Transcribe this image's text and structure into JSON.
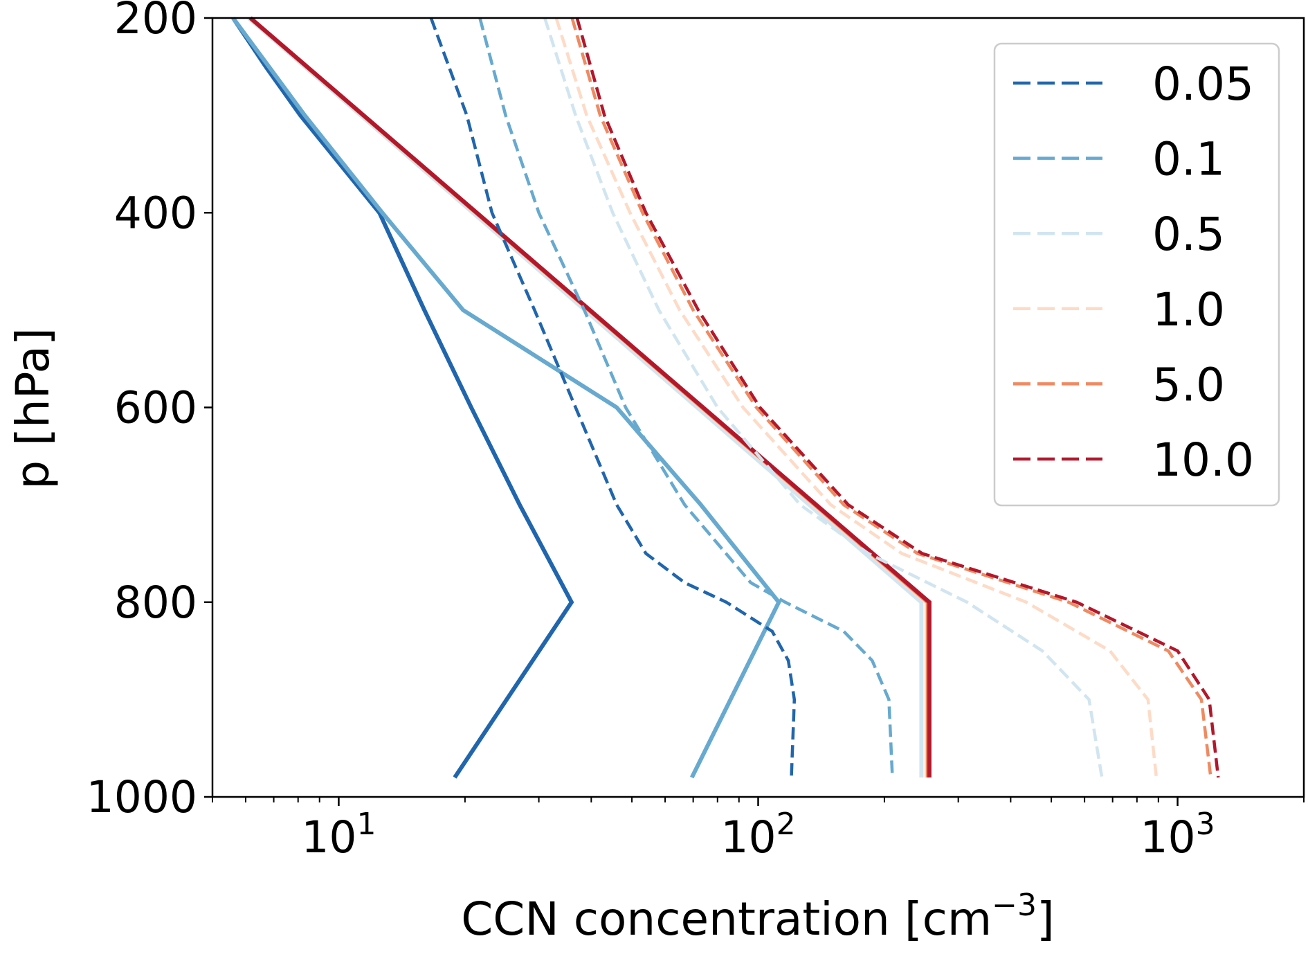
{
  "chart_data": {
    "type": "line",
    "title": "",
    "xlabel": "CCN concentration [cm",
    "xlabel_sup": "−3",
    "xlabel_end": "]",
    "ylabel": "p [hPa]",
    "xscale": "log",
    "xlim": [
      5,
      2000
    ],
    "ylim": [
      1000,
      200
    ],
    "y_inverted": true,
    "grid": false,
    "legend_placement": "top-right",
    "xticks": [
      {
        "base": "10",
        "exp": "1",
        "value": 10
      },
      {
        "base": "10",
        "exp": "2",
        "value": 100
      },
      {
        "base": "10",
        "exp": "3",
        "value": 1000
      }
    ],
    "yticks": [
      "200",
      "400",
      "600",
      "800",
      "1000"
    ],
    "series": [
      {
        "name": "0.05",
        "color": "#2166ac",
        "dashed": {
          "p": [
            200,
            300,
            400,
            500,
            600,
            700,
            750,
            780,
            800,
            830,
            860,
            900,
            980
          ],
          "x": [
            16.6,
            20.2,
            23.2,
            29.3,
            36.7,
            46,
            54,
            66.8,
            84,
            108,
            118,
            122,
            120
          ]
        },
        "solid": {
          "p": [
            200,
            250,
            300,
            400,
            500,
            600,
            700,
            800,
            980
          ],
          "x": [
            5.6,
            6.7,
            8.1,
            12.5,
            16,
            20.7,
            27,
            35.9,
            18.9
          ]
        }
      },
      {
        "name": "0.1",
        "color": "#67a9cf",
        "dashed": {
          "p": [
            200,
            300,
            400,
            500,
            600,
            700,
            780,
            800,
            830,
            860,
            900,
            980
          ],
          "x": [
            21.7,
            25,
            30,
            38.5,
            48.3,
            66.8,
            96,
            116,
            160,
            187,
            205,
            209
          ]
        },
        "solid": {
          "p": [
            200,
            300,
            400,
            500,
            600,
            700,
            800,
            980
          ],
          "x": [
            5.6,
            8.3,
            12.7,
            19.8,
            46,
            73,
            112,
            69.5
          ]
        }
      },
      {
        "name": "0.5",
        "color": "#d1e5f0",
        "dashed": {
          "p": [
            200,
            300,
            400,
            500,
            600,
            700,
            750,
            800,
            850,
            900,
            980
          ],
          "x": [
            31,
            36.7,
            45,
            58,
            80,
            126,
            183,
            315,
            476,
            615,
            660
          ]
        },
        "solid": {
          "p": [
            200,
            800,
            980
          ],
          "x": [
            6.1,
            245,
            245
          ]
        }
      },
      {
        "name": "1.0",
        "color": "#fddbc7",
        "dashed": {
          "p": [
            200,
            300,
            400,
            500,
            600,
            700,
            750,
            800,
            850,
            900,
            980
          ],
          "x": [
            33,
            39,
            49.5,
            65,
            92,
            149,
            220,
            436,
            690,
            850,
            890
          ]
        },
        "solid": {
          "p": [
            200,
            800,
            980
          ],
          "x": [
            6.15,
            252,
            252
          ]
        }
      },
      {
        "name": "5.0",
        "color": "#ef8a62",
        "dashed": {
          "p": [
            200,
            300,
            400,
            500,
            600,
            700,
            750,
            800,
            850,
            900,
            980
          ],
          "x": [
            36,
            42,
            53,
            70,
            99,
            160,
            240,
            550,
            950,
            1140,
            1200
          ]
        },
        "solid": {
          "p": [
            200,
            800,
            980
          ],
          "x": [
            6.15,
            254,
            254
          ]
        }
      },
      {
        "name": "10.0",
        "color": "#b2182b",
        "dashed": {
          "p": [
            200,
            300,
            400,
            500,
            600,
            700,
            750,
            800,
            850,
            900,
            980
          ],
          "x": [
            37,
            43,
            54,
            72,
            101,
            164,
            246,
            575,
            1000,
            1190,
            1250
          ]
        },
        "solid": {
          "p": [
            200,
            800,
            980
          ],
          "x": [
            6.16,
            256,
            256
          ]
        }
      }
    ]
  }
}
